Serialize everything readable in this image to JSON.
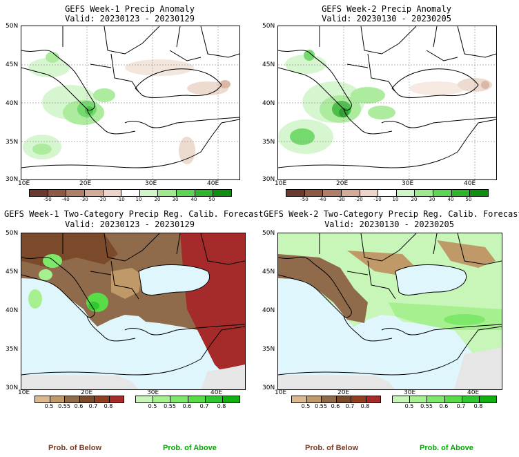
{
  "panels": [
    {
      "title": "GEFS Week-1 Precip Anomaly",
      "valid": "Valid: 20230123 - 20230129"
    },
    {
      "title": "GEFS Week-2 Precip Anomaly",
      "valid": "Valid: 20230130 - 20230205"
    },
    {
      "title": "GEFS Week-1 Two-Category Precip Reg. Calib. Forecast",
      "valid": "Valid: 20230123 - 20230129"
    },
    {
      "title": "GEFS Week-2 Two-Category Precip Reg. Calib. Forecast",
      "valid": "Valid: 20230130 - 20230205"
    }
  ],
  "lat_labels": [
    "50N",
    "45N",
    "40N",
    "35N",
    "30N"
  ],
  "lon_labels": [
    "10E",
    "20E",
    "30E",
    "40E"
  ],
  "anomaly_colorbar": {
    "labels": [
      "-50",
      "-40",
      "-30",
      "-20",
      "-10",
      "10",
      "20",
      "30",
      "40",
      "50"
    ],
    "colors": [
      "#6b3a2e",
      "#8e5a45",
      "#b07f68",
      "#d4ab98",
      "#ecd5c8",
      "#ffffff",
      "#d0f5c8",
      "#9fe88f",
      "#5ed455",
      "#2fb52b",
      "#0f8f0f"
    ]
  },
  "below_colorbar": {
    "labels": [
      "0.5",
      "0.55",
      "0.6",
      "0.7",
      "0.8"
    ],
    "colors": [
      "#d9b98d",
      "#bf9968",
      "#8f6a4b",
      "#7a4a2a",
      "#8f3f20",
      "#a52a2a"
    ]
  },
  "above_colorbar": {
    "labels": [
      "0.5",
      "0.55",
      "0.6",
      "0.7",
      "0.8"
    ],
    "colors": [
      "#c8f5b8",
      "#a6f08f",
      "#7ee86a",
      "#58dc48",
      "#30c830",
      "#10b010"
    ]
  },
  "prob_below": "Prob. of Below",
  "prob_above": "Prob. of Above",
  "colors": {
    "below_text": "#7a3a20",
    "above_text": "#00aa00",
    "sea_blue": "#dff7fc",
    "gray": "#e6e6e6"
  }
}
